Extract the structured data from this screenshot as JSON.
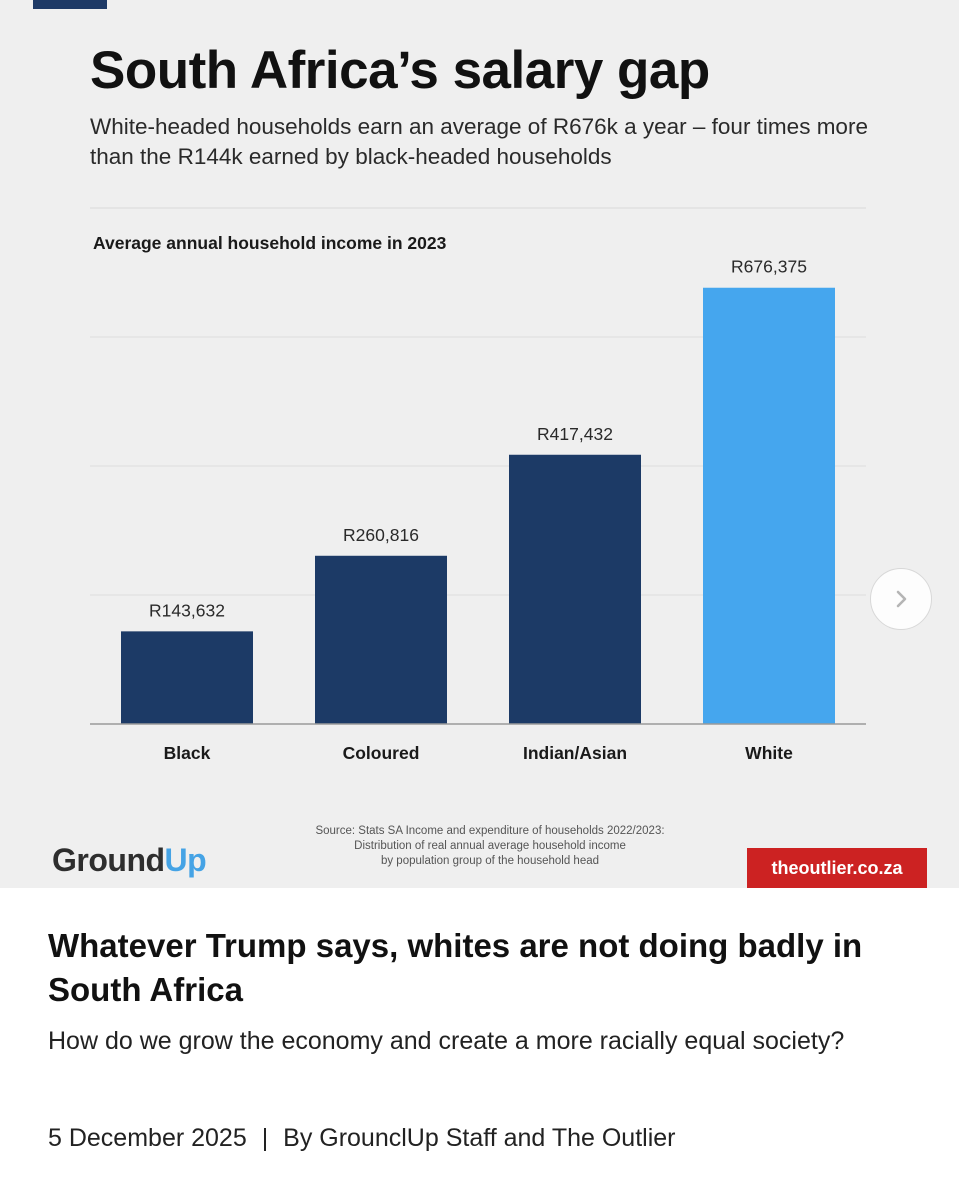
{
  "graphic": {
    "title": "South Africa’s salary gap",
    "subtitle": "White-headed households earn an average of R676k a year – four times more than the R144k earned by black-headed households",
    "source_lines": [
      "Source: Stats SA Income and expenditure of households 2022/2023:",
      "Distribution of real annual average household income",
      "by population group of the household head"
    ],
    "logo_text_a": "Gr",
    "logo_text_b": "und",
    "logo_text_c": "Up",
    "outlier_label": "theoutlier.co.za"
  },
  "chart_data": {
    "type": "bar",
    "title": "Average annual household income in 2023",
    "categories": [
      "Black",
      "Coloured",
      "Indian/Asian",
      "White"
    ],
    "values": [
      143632,
      260816,
      417432,
      676375
    ],
    "value_labels": [
      "R143,632",
      "R260,816",
      "R417,432",
      "R676,375"
    ],
    "colors": [
      "#1c3a66",
      "#1c3a66",
      "#1c3a66",
      "#45a6ee"
    ],
    "ylim": [
      0,
      800000
    ],
    "grid": true
  },
  "article": {
    "headline": "Whatever Trump says, whites are not doing badly in South Africa",
    "dek": "How do we grow the economy and create a more racially equal society?",
    "date": "5 December 2025",
    "separator": "|",
    "byline": "By GrounclUp Staff and The Outlier"
  }
}
